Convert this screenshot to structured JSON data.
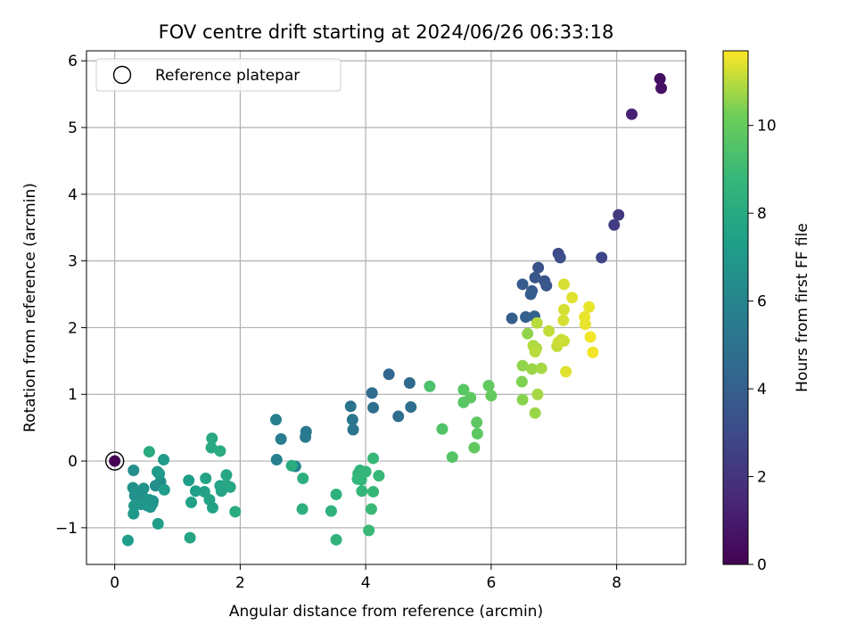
{
  "chart_data": {
    "type": "scatter",
    "title": "FOV centre drift starting at 2024/06/26 06:33:18",
    "xlabel": "Angular distance from reference (arcmin)",
    "ylabel": "Rotation from reference (arcmin)",
    "xlim": [
      -0.45,
      9.1
    ],
    "ylim": [
      -1.55,
      6.15
    ],
    "xticks": [
      0,
      2,
      4,
      6,
      8
    ],
    "yticks": [
      -1,
      0,
      1,
      2,
      3,
      4,
      5,
      6
    ],
    "grid": true,
    "legend": {
      "placement": "top-left",
      "entries": [
        "Reference platepar"
      ]
    },
    "reference_point": {
      "x": 0,
      "y": 0,
      "color_value": 0.1
    },
    "colorbar": {
      "label": "Hours from first FF file",
      "range": [
        0,
        11.7
      ],
      "ticks": [
        0,
        2,
        4,
        6,
        8,
        10
      ],
      "colormap": "viridis"
    },
    "points": [
      {
        "x": 8.69,
        "y": 5.73,
        "c": 0.5
      },
      {
        "x": 8.71,
        "y": 5.59,
        "c": 0.6
      },
      {
        "x": 8.24,
        "y": 5.2,
        "c": 1.2
      },
      {
        "x": 8.03,
        "y": 3.69,
        "c": 2.2
      },
      {
        "x": 7.96,
        "y": 3.54,
        "c": 2.4
      },
      {
        "x": 7.76,
        "y": 3.05,
        "c": 2.8
      },
      {
        "x": 7.07,
        "y": 3.11,
        "c": 3.0
      },
      {
        "x": 7.1,
        "y": 3.05,
        "c": 3.2
      },
      {
        "x": 6.75,
        "y": 2.9,
        "c": 3.4
      },
      {
        "x": 6.7,
        "y": 2.75,
        "c": 3.6
      },
      {
        "x": 6.85,
        "y": 2.7,
        "c": 3.5
      },
      {
        "x": 6.88,
        "y": 2.63,
        "c": 3.6
      },
      {
        "x": 6.5,
        "y": 2.65,
        "c": 3.8
      },
      {
        "x": 6.65,
        "y": 2.55,
        "c": 3.8
      },
      {
        "x": 6.63,
        "y": 2.5,
        "c": 3.9
      },
      {
        "x": 6.33,
        "y": 2.14,
        "c": 3.9
      },
      {
        "x": 6.55,
        "y": 2.16,
        "c": 4.0
      },
      {
        "x": 6.69,
        "y": 2.17,
        "c": 4.0
      },
      {
        "x": 4.37,
        "y": 1.3,
        "c": 4.3
      },
      {
        "x": 4.7,
        "y": 1.17,
        "c": 4.5
      },
      {
        "x": 4.1,
        "y": 1.02,
        "c": 4.6
      },
      {
        "x": 4.52,
        "y": 0.67,
        "c": 4.7
      },
      {
        "x": 4.12,
        "y": 0.8,
        "c": 4.8
      },
      {
        "x": 4.72,
        "y": 0.81,
        "c": 4.8
      },
      {
        "x": 3.76,
        "y": 0.82,
        "c": 5.0
      },
      {
        "x": 3.79,
        "y": 0.62,
        "c": 5.1
      },
      {
        "x": 3.8,
        "y": 0.47,
        "c": 5.1
      },
      {
        "x": 3.05,
        "y": 0.44,
        "c": 5.3
      },
      {
        "x": 3.04,
        "y": 0.36,
        "c": 5.4
      },
      {
        "x": 2.65,
        "y": 0.33,
        "c": 5.6
      },
      {
        "x": 2.57,
        "y": 0.62,
        "c": 5.7
      },
      {
        "x": 2.58,
        "y": 0.02,
        "c": 5.8
      },
      {
        "x": 2.88,
        "y": -0.08,
        "c": 5.9
      },
      {
        "x": 0.73,
        "y": -0.31,
        "c": 6.4
      },
      {
        "x": 0.65,
        "y": -0.37,
        "c": 6.5
      },
      {
        "x": 0.3,
        "y": -0.14,
        "c": 6.5
      },
      {
        "x": 0.29,
        "y": -0.4,
        "c": 6.6
      },
      {
        "x": 0.32,
        "y": -0.52,
        "c": 6.6
      },
      {
        "x": 0.43,
        "y": -0.49,
        "c": 6.7
      },
      {
        "x": 0.36,
        "y": -0.46,
        "c": 6.7
      },
      {
        "x": 0.46,
        "y": -0.41,
        "c": 6.7
      },
      {
        "x": 0.55,
        "y": -0.58,
        "c": 6.8
      },
      {
        "x": 0.6,
        "y": -0.64,
        "c": 6.8
      },
      {
        "x": 0.61,
        "y": -0.6,
        "c": 6.8
      },
      {
        "x": 0.52,
        "y": -0.67,
        "c": 6.9
      },
      {
        "x": 0.42,
        "y": -0.65,
        "c": 6.9
      },
      {
        "x": 0.57,
        "y": -0.69,
        "c": 6.9
      },
      {
        "x": 0.31,
        "y": -0.67,
        "c": 7.0
      },
      {
        "x": 0.3,
        "y": -0.79,
        "c": 7.0
      },
      {
        "x": 0.68,
        "y": -0.16,
        "c": 7.1
      },
      {
        "x": 0.71,
        "y": -0.19,
        "c": 7.1
      },
      {
        "x": 0.79,
        "y": -0.43,
        "c": 7.2
      },
      {
        "x": 0.78,
        "y": 0.02,
        "c": 7.2
      },
      {
        "x": 0.69,
        "y": -0.94,
        "c": 7.3
      },
      {
        "x": 0.21,
        "y": -1.19,
        "c": 7.3
      },
      {
        "x": 1.18,
        "y": -0.29,
        "c": 7.4
      },
      {
        "x": 1.29,
        "y": -0.45,
        "c": 7.4
      },
      {
        "x": 1.22,
        "y": -0.62,
        "c": 7.5
      },
      {
        "x": 1.43,
        "y": -0.46,
        "c": 7.5
      },
      {
        "x": 1.45,
        "y": -0.26,
        "c": 7.6
      },
      {
        "x": 1.51,
        "y": -0.58,
        "c": 7.6
      },
      {
        "x": 1.56,
        "y": -0.7,
        "c": 7.6
      },
      {
        "x": 1.2,
        "y": -1.15,
        "c": 7.7
      },
      {
        "x": 1.68,
        "y": -0.37,
        "c": 7.7
      },
      {
        "x": 1.7,
        "y": -0.45,
        "c": 7.7
      },
      {
        "x": 1.78,
        "y": -0.36,
        "c": 7.8
      },
      {
        "x": 1.78,
        "y": -0.21,
        "c": 7.8
      },
      {
        "x": 1.84,
        "y": -0.39,
        "c": 7.8
      },
      {
        "x": 1.55,
        "y": 0.34,
        "c": 7.9
      },
      {
        "x": 1.54,
        "y": 0.2,
        "c": 7.9
      },
      {
        "x": 0.55,
        "y": 0.14,
        "c": 8.0
      },
      {
        "x": 1.68,
        "y": 0.15,
        "c": 8.1
      },
      {
        "x": 1.92,
        "y": -0.76,
        "c": 8.1
      },
      {
        "x": 2.82,
        "y": -0.07,
        "c": 8.2
      },
      {
        "x": 3.0,
        "y": -0.26,
        "c": 8.3
      },
      {
        "x": 2.99,
        "y": -0.72,
        "c": 8.3
      },
      {
        "x": 3.45,
        "y": -0.75,
        "c": 8.4
      },
      {
        "x": 3.53,
        "y": -0.5,
        "c": 8.4
      },
      {
        "x": 3.53,
        "y": -1.18,
        "c": 8.5
      },
      {
        "x": 3.88,
        "y": -0.19,
        "c": 8.6
      },
      {
        "x": 3.91,
        "y": -0.14,
        "c": 8.6
      },
      {
        "x": 3.93,
        "y": -0.28,
        "c": 8.6
      },
      {
        "x": 3.87,
        "y": -0.27,
        "c": 8.7
      },
      {
        "x": 4.0,
        "y": -0.16,
        "c": 8.7
      },
      {
        "x": 3.94,
        "y": -0.45,
        "c": 8.7
      },
      {
        "x": 4.12,
        "y": 0.04,
        "c": 8.8
      },
      {
        "x": 4.12,
        "y": -0.46,
        "c": 8.8
      },
      {
        "x": 4.21,
        "y": -0.22,
        "c": 8.8
      },
      {
        "x": 4.09,
        "y": -0.72,
        "c": 8.9
      },
      {
        "x": 4.05,
        "y": -1.04,
        "c": 8.9
      },
      {
        "x": 5.02,
        "y": 1.12,
        "c": 9.4
      },
      {
        "x": 5.22,
        "y": 0.48,
        "c": 9.5
      },
      {
        "x": 5.38,
        "y": 0.06,
        "c": 9.6
      },
      {
        "x": 5.56,
        "y": 1.07,
        "c": 9.7
      },
      {
        "x": 5.56,
        "y": 0.88,
        "c": 9.7
      },
      {
        "x": 5.67,
        "y": 0.95,
        "c": 9.8
      },
      {
        "x": 5.77,
        "y": 0.58,
        "c": 9.8
      },
      {
        "x": 5.78,
        "y": 0.41,
        "c": 9.8
      },
      {
        "x": 5.73,
        "y": 0.2,
        "c": 9.9
      },
      {
        "x": 5.96,
        "y": 1.13,
        "c": 9.9
      },
      {
        "x": 6.0,
        "y": 0.98,
        "c": 10.0
      },
      {
        "x": 6.49,
        "y": 1.19,
        "c": 10.4
      },
      {
        "x": 6.5,
        "y": 0.92,
        "c": 10.5
      },
      {
        "x": 6.5,
        "y": 1.43,
        "c": 10.6
      },
      {
        "x": 6.58,
        "y": 1.91,
        "c": 10.6
      },
      {
        "x": 6.65,
        "y": 1.38,
        "c": 10.7
      },
      {
        "x": 6.7,
        "y": 0.72,
        "c": 10.7
      },
      {
        "x": 6.74,
        "y": 1.0,
        "c": 10.8
      },
      {
        "x": 6.8,
        "y": 1.39,
        "c": 10.8
      },
      {
        "x": 6.67,
        "y": 1.73,
        "c": 10.9
      },
      {
        "x": 6.72,
        "y": 1.69,
        "c": 10.9
      },
      {
        "x": 6.7,
        "y": 1.64,
        "c": 11.0
      },
      {
        "x": 6.73,
        "y": 2.07,
        "c": 11.0
      },
      {
        "x": 6.92,
        "y": 1.95,
        "c": 11.1
      },
      {
        "x": 7.05,
        "y": 1.72,
        "c": 11.1
      },
      {
        "x": 7.07,
        "y": 1.78,
        "c": 11.2
      },
      {
        "x": 7.12,
        "y": 1.82,
        "c": 11.2
      },
      {
        "x": 7.16,
        "y": 1.8,
        "c": 11.2
      },
      {
        "x": 7.15,
        "y": 2.11,
        "c": 11.3
      },
      {
        "x": 7.16,
        "y": 2.27,
        "c": 11.3
      },
      {
        "x": 7.16,
        "y": 2.65,
        "c": 11.3
      },
      {
        "x": 7.29,
        "y": 2.45,
        "c": 11.4
      },
      {
        "x": 7.19,
        "y": 1.34,
        "c": 11.4
      },
      {
        "x": 7.49,
        "y": 2.16,
        "c": 11.5
      },
      {
        "x": 7.5,
        "y": 2.05,
        "c": 11.5
      },
      {
        "x": 7.56,
        "y": 2.31,
        "c": 11.5
      },
      {
        "x": 7.58,
        "y": 1.86,
        "c": 11.6
      },
      {
        "x": 7.62,
        "y": 1.63,
        "c": 11.6
      }
    ]
  }
}
